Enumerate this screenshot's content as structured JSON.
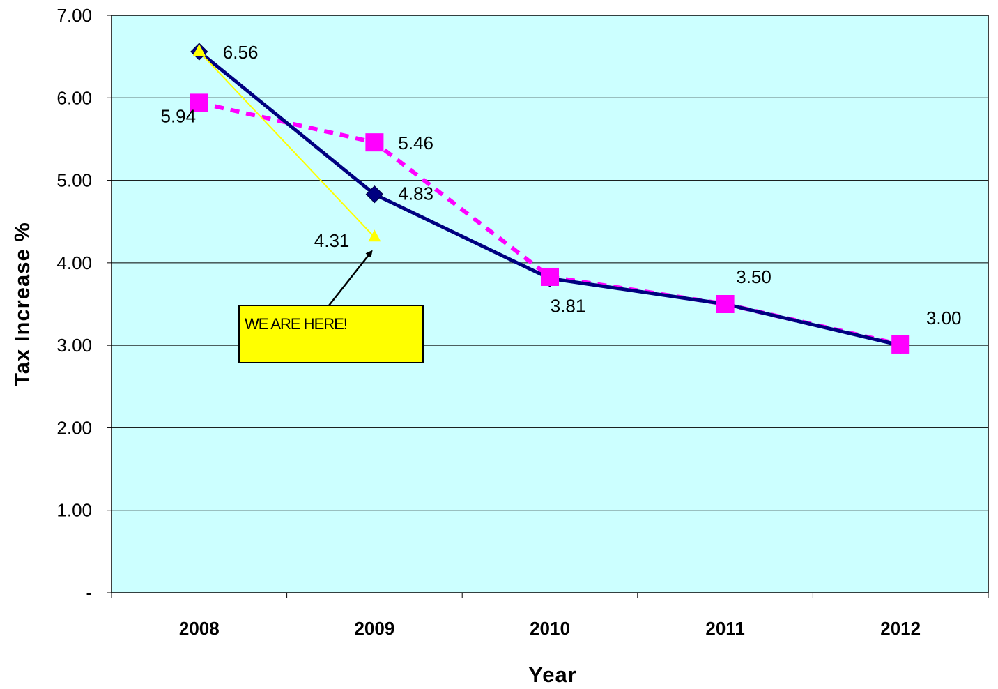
{
  "chart_data": {
    "type": "line",
    "categories": [
      "2008",
      "2009",
      "2010",
      "2011",
      "2012"
    ],
    "xlabel": "Year",
    "ylabel": "Tax Increase %",
    "ylim": [
      0,
      7
    ],
    "yticks": [
      0,
      1,
      2,
      3,
      4,
      5,
      6,
      7
    ],
    "ytick_labels": [
      "-",
      "1.00",
      "2.00",
      "3.00",
      "4.00",
      "5.00",
      "6.00",
      "7.00"
    ],
    "grid": "horizontal",
    "background": "#ccffff",
    "series": [
      {
        "values": [
          6.56,
          4.83,
          3.81,
          3.5,
          3.0
        ],
        "labels": [
          "6.56",
          "4.83",
          "3.81",
          "3.50",
          "3.00"
        ],
        "color": "#000080",
        "style": "solid",
        "marker": "diamond"
      },
      {
        "values": [
          5.94,
          5.46,
          3.83,
          3.5,
          3.01
        ],
        "labels": [
          "5.94",
          "5.46"
        ],
        "color": "#ff00ff",
        "style": "dashed",
        "marker": "square"
      },
      {
        "values": [
          6.56,
          4.31,
          null,
          null,
          null
        ],
        "labels": [
          "",
          "4.31"
        ],
        "color": "#ffff00",
        "style": "solid",
        "marker": "triangle"
      }
    ],
    "annotations": [
      {
        "text": "WE ARE HERE!",
        "points_to": {
          "category": "2009",
          "value": 4.31
        }
      }
    ]
  }
}
